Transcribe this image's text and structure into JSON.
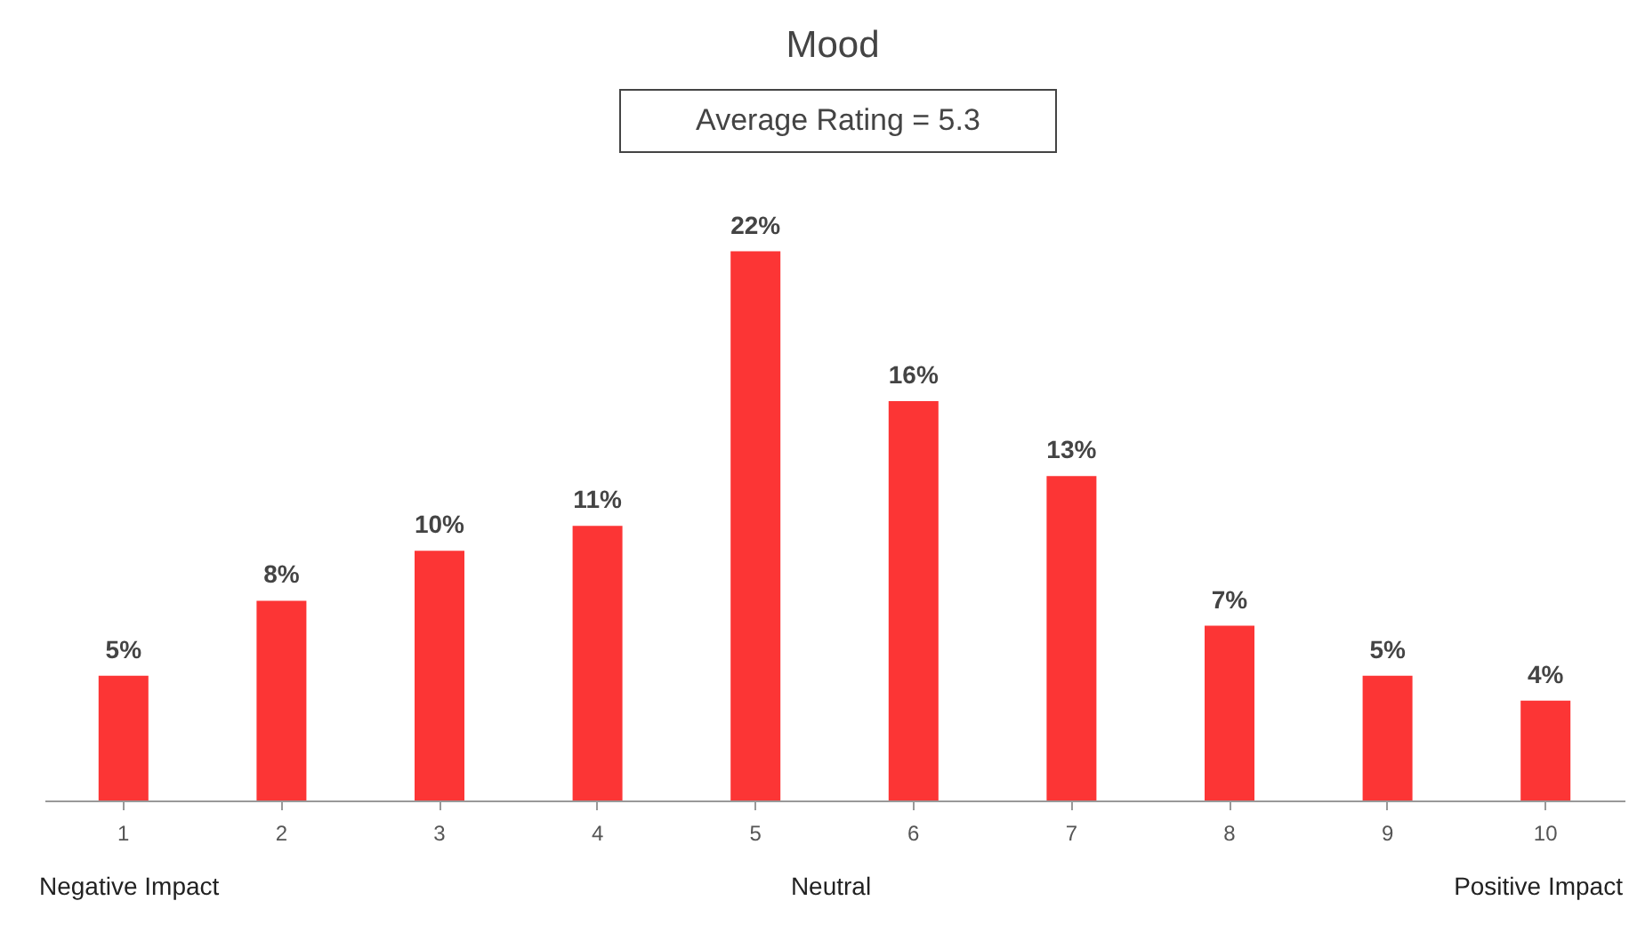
{
  "chart_data": {
    "type": "bar",
    "title": "Mood",
    "subtitle": "Average Rating = 5.3",
    "categories": [
      "1",
      "2",
      "3",
      "4",
      "5",
      "6",
      "7",
      "8",
      "9",
      "10"
    ],
    "values": [
      5,
      8,
      10,
      11,
      22,
      16,
      13,
      7,
      5,
      4
    ],
    "value_labels": [
      "5%",
      "8%",
      "10%",
      "11%",
      "22%",
      "16%",
      "13%",
      "7%",
      "5%",
      "4%"
    ],
    "color": "#fc3535",
    "annotations": [
      "Negative Impact",
      "Neutral",
      "Positive Impact"
    ]
  }
}
